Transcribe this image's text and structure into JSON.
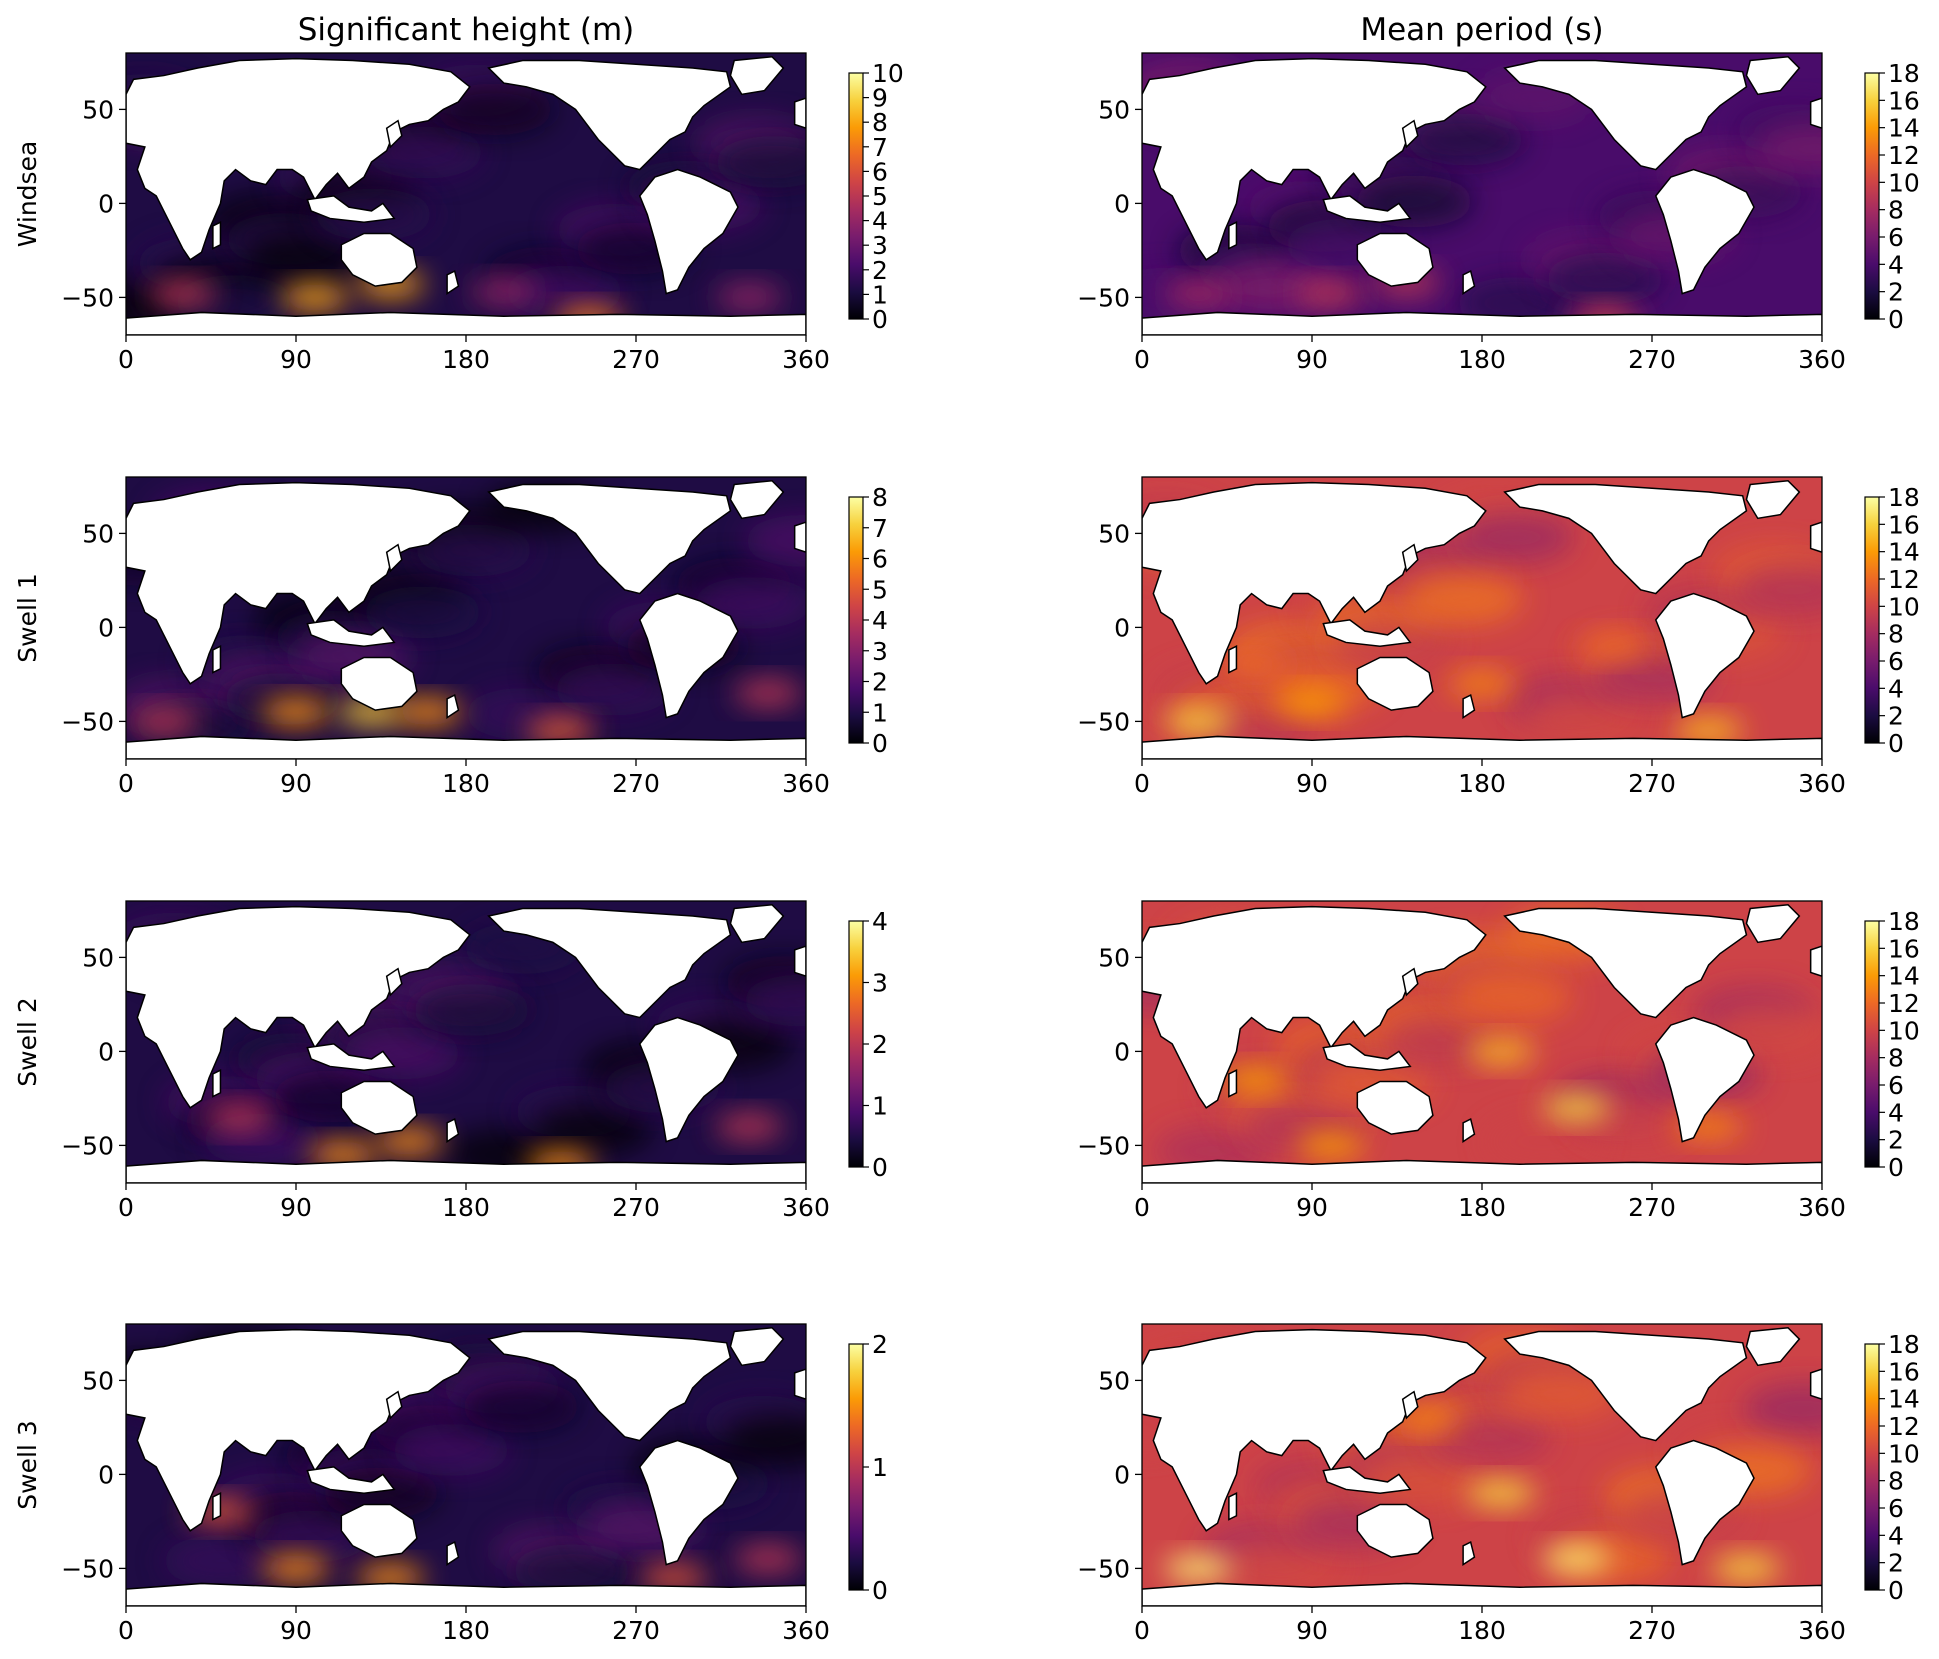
{
  "figure": {
    "column_titles": [
      "Significant height (m)",
      "Mean period (s)"
    ],
    "row_labels": [
      "Windsea",
      "Swell 1",
      "Swell 2",
      "Swell 3"
    ]
  },
  "colormap": {
    "name": "inferno",
    "stops": [
      "#000004",
      "#1b0c41",
      "#4a0c6b",
      "#781c6d",
      "#a52c60",
      "#cf4446",
      "#ed6925",
      "#fb9b06",
      "#f7d13d",
      "#fcffa4"
    ]
  },
  "colors": {
    "land": "#ffffff",
    "coast": "#000000",
    "axes": "#000000"
  },
  "chart_data": [
    {
      "type": "heatmap",
      "title": "Significant height (m)",
      "ylabel": "Windsea",
      "xlim": [
        0,
        360
      ],
      "ylim": [
        -70,
        80
      ],
      "xticks": [
        "0",
        "90",
        "180",
        "270",
        "360"
      ],
      "yticks": [
        "50",
        "0",
        "−50"
      ],
      "colorbar": {
        "range": [
          0,
          10
        ],
        "ticks": [
          "0",
          "1",
          "2",
          "3",
          "4",
          "5",
          "6",
          "7",
          "8",
          "9",
          "10"
        ]
      },
      "hotspots": [
        {
          "lon": 100,
          "lat": -50,
          "value": 8
        },
        {
          "lon": 140,
          "lat": -43,
          "value": 8
        },
        {
          "lon": 245,
          "lat": -62,
          "value": 7
        },
        {
          "lon": 30,
          "lat": -48,
          "value": 5
        },
        {
          "lon": 200,
          "lat": -47,
          "value": 4
        },
        {
          "lon": 330,
          "lat": -50,
          "value": 4
        }
      ]
    },
    {
      "type": "heatmap",
      "title": "Mean period (s)",
      "ylabel": "Windsea",
      "xlim": [
        0,
        360
      ],
      "ylim": [
        -70,
        80
      ],
      "xticks": [
        "0",
        "90",
        "180",
        "270",
        "360"
      ],
      "yticks": [
        "50",
        "0",
        "−50"
      ],
      "colorbar": {
        "range": [
          0,
          18
        ],
        "ticks": [
          "0",
          "2",
          "4",
          "6",
          "8",
          "10",
          "12",
          "14",
          "16",
          "18"
        ]
      },
      "hotspots": [
        {
          "lon": 100,
          "lat": -48,
          "value": 9
        },
        {
          "lon": 140,
          "lat": -42,
          "value": 9
        },
        {
          "lon": 245,
          "lat": -62,
          "value": 10
        },
        {
          "lon": 30,
          "lat": -48,
          "value": 8
        }
      ]
    },
    {
      "type": "heatmap",
      "title": "",
      "ylabel": "Swell 1",
      "xlim": [
        0,
        360
      ],
      "ylim": [
        -70,
        80
      ],
      "xticks": [
        "0",
        "90",
        "180",
        "270",
        "360"
      ],
      "yticks": [
        "50",
        "0",
        "−50"
      ],
      "colorbar": {
        "range": [
          0,
          8
        ],
        "ticks": [
          "0",
          "1",
          "2",
          "3",
          "4",
          "5",
          "6",
          "7",
          "8"
        ]
      },
      "hotspots": [
        {
          "lon": 90,
          "lat": -45,
          "value": 6
        },
        {
          "lon": 130,
          "lat": -45,
          "value": 7
        },
        {
          "lon": 160,
          "lat": -45,
          "value": 6
        },
        {
          "lon": 230,
          "lat": -55,
          "value": 5
        },
        {
          "lon": 340,
          "lat": -35,
          "value": 4
        },
        {
          "lon": 20,
          "lat": -50,
          "value": 4
        }
      ]
    },
    {
      "type": "heatmap",
      "title": "",
      "ylabel": "Swell 1",
      "xlim": [
        0,
        360
      ],
      "ylim": [
        -70,
        80
      ],
      "xticks": [
        "0",
        "90",
        "180",
        "270",
        "360"
      ],
      "yticks": [
        "50",
        "0",
        "−50"
      ],
      "colorbar": {
        "range": [
          0,
          18
        ],
        "ticks": [
          "0",
          "2",
          "4",
          "6",
          "8",
          "10",
          "12",
          "14",
          "16",
          "18"
        ]
      },
      "hotspots": [
        {
          "lon": 90,
          "lat": -40,
          "value": 14
        },
        {
          "lon": 60,
          "lat": -20,
          "value": 12
        },
        {
          "lon": 180,
          "lat": -30,
          "value": 13
        },
        {
          "lon": 250,
          "lat": -10,
          "value": 12
        },
        {
          "lon": 300,
          "lat": -55,
          "value": 15
        },
        {
          "lon": 30,
          "lat": -50,
          "value": 16
        }
      ]
    },
    {
      "type": "heatmap",
      "title": "",
      "ylabel": "Swell 2",
      "xlim": [
        0,
        360
      ],
      "ylim": [
        -70,
        80
      ],
      "xticks": [
        "0",
        "90",
        "180",
        "270",
        "360"
      ],
      "yticks": [
        "50",
        "0",
        "−50"
      ],
      "colorbar": {
        "range": [
          0,
          4
        ],
        "ticks": [
          "0",
          "1",
          "2",
          "3",
          "4"
        ]
      },
      "hotspots": [
        {
          "lon": 115,
          "lat": -55,
          "value": 3
        },
        {
          "lon": 150,
          "lat": -48,
          "value": 3
        },
        {
          "lon": 230,
          "lat": -60,
          "value": 3
        },
        {
          "lon": 330,
          "lat": -40,
          "value": 2
        },
        {
          "lon": 60,
          "lat": -35,
          "value": 2
        }
      ]
    },
    {
      "type": "heatmap",
      "title": "",
      "ylabel": "Swell 2",
      "xlim": [
        0,
        360
      ],
      "ylim": [
        -70,
        80
      ],
      "xticks": [
        "0",
        "90",
        "180",
        "270",
        "360"
      ],
      "yticks": [
        "50",
        "0",
        "−50"
      ],
      "colorbar": {
        "range": [
          0,
          18
        ],
        "ticks": [
          "0",
          "2",
          "4",
          "6",
          "8",
          "10",
          "12",
          "14",
          "16",
          "18"
        ]
      },
      "hotspots": [
        {
          "lon": 60,
          "lat": -15,
          "value": 14
        },
        {
          "lon": 230,
          "lat": -30,
          "value": 16
        },
        {
          "lon": 190,
          "lat": 0,
          "value": 15
        },
        {
          "lon": 100,
          "lat": -50,
          "value": 14
        },
        {
          "lon": 300,
          "lat": -40,
          "value": 13
        }
      ]
    },
    {
      "type": "heatmap",
      "title": "",
      "ylabel": "Swell 3",
      "xlim": [
        0,
        360
      ],
      "ylim": [
        -70,
        80
      ],
      "xticks": [
        "0",
        "90",
        "180",
        "270",
        "360"
      ],
      "yticks": [
        "50",
        "0",
        "−50"
      ],
      "colorbar": {
        "range": [
          0,
          2
        ],
        "ticks": [
          "0",
          "1",
          "2"
        ]
      },
      "hotspots": [
        {
          "lon": 90,
          "lat": -50,
          "value": 1.5
        },
        {
          "lon": 140,
          "lat": -55,
          "value": 1.5
        },
        {
          "lon": 50,
          "lat": -20,
          "value": 1.2
        },
        {
          "lon": 290,
          "lat": -55,
          "value": 1.2
        },
        {
          "lon": 340,
          "lat": -45,
          "value": 1.0
        }
      ]
    },
    {
      "type": "heatmap",
      "title": "",
      "ylabel": "Swell 3",
      "xlim": [
        0,
        360
      ],
      "ylim": [
        -70,
        80
      ],
      "xticks": [
        "0",
        "90",
        "180",
        "270",
        "360"
      ],
      "yticks": [
        "50",
        "0",
        "−50"
      ],
      "colorbar": {
        "range": [
          0,
          18
        ],
        "ticks": [
          "0",
          "2",
          "4",
          "6",
          "8",
          "10",
          "12",
          "14",
          "16",
          "18"
        ]
      },
      "hotspots": [
        {
          "lon": 190,
          "lat": -10,
          "value": 16
        },
        {
          "lon": 230,
          "lat": -45,
          "value": 17
        },
        {
          "lon": 30,
          "lat": -50,
          "value": 17
        },
        {
          "lon": 150,
          "lat": 30,
          "value": 13
        },
        {
          "lon": 320,
          "lat": -50,
          "value": 16
        }
      ]
    }
  ]
}
